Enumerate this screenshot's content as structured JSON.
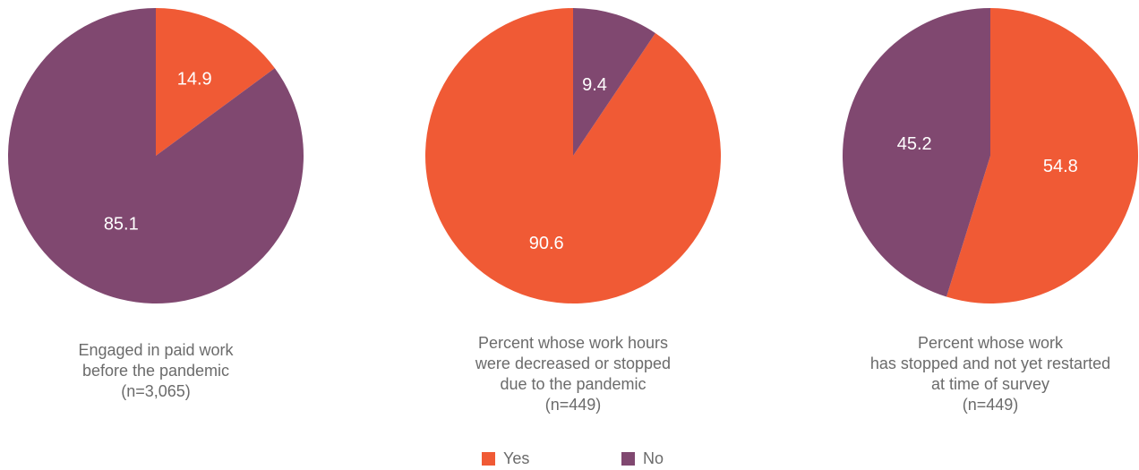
{
  "colors": {
    "yes": "#f05a35",
    "no": "#804870"
  },
  "chart_data": [
    {
      "type": "pie",
      "slices": [
        {
          "series": "Yes",
          "value": 14.9,
          "label": "14.9"
        },
        {
          "series": "No",
          "value": 85.1,
          "label": "85.1"
        }
      ],
      "caption": [
        "Engaged in paid work",
        "before the pandemic",
        "(n=3,065)"
      ]
    },
    {
      "type": "pie",
      "slices": [
        {
          "series": "Yes",
          "value": 90.6,
          "label": "90.6"
        },
        {
          "series": "No",
          "value": 9.4,
          "label": "9.4"
        }
      ],
      "caption": [
        "Percent whose work hours",
        "were decreased or stopped",
        "due to the pandemic",
        "(n=449)"
      ]
    },
    {
      "type": "pie",
      "slices": [
        {
          "series": "Yes",
          "value": 54.8,
          "label": "54.8"
        },
        {
          "series": "No",
          "value": 45.2,
          "label": "45.2"
        }
      ],
      "caption": [
        "Percent whose work",
        "has stopped and not yet restarted",
        "at time of survey",
        "(n=449)"
      ]
    }
  ],
  "legend": [
    {
      "series": "Yes",
      "label": "Yes"
    },
    {
      "series": "No",
      "label": "No"
    }
  ]
}
